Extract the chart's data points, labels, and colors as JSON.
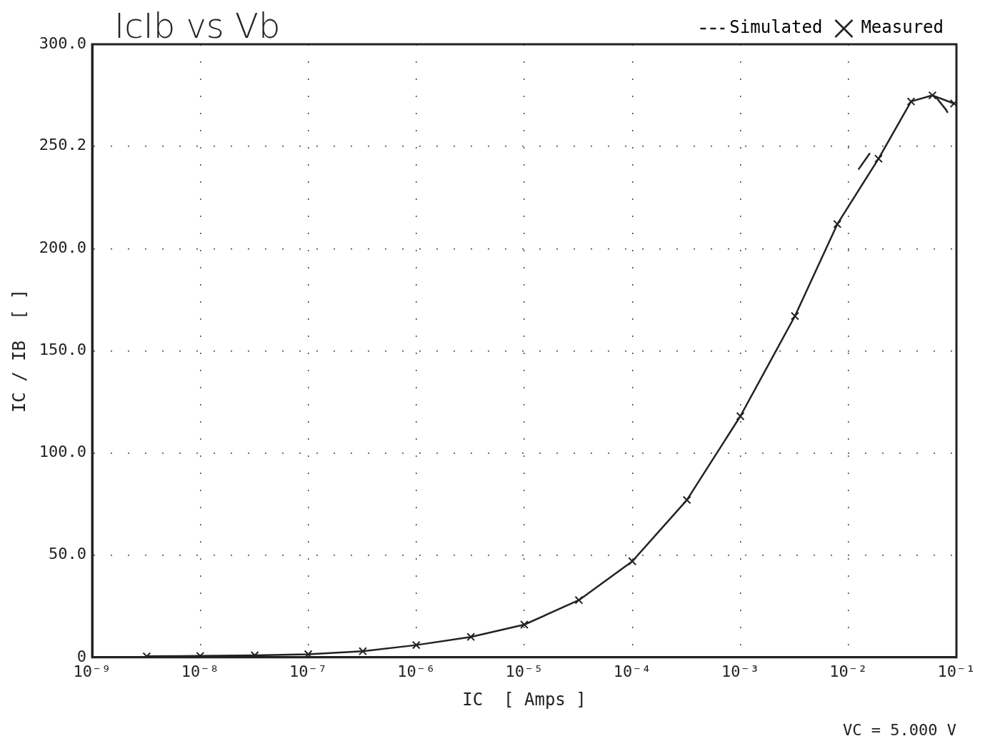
{
  "chart_data": {
    "type": "line",
    "title": "IcIb vs Vb",
    "xlabel": "IC  [ Amps ]",
    "ylabel": "IC / IB  [ ]",
    "annotations": [
      "VC =  5.000 V"
    ],
    "log": "x",
    "grid": true,
    "legend": "top right",
    "xlim": [
      1e-09,
      0.1
    ],
    "xticks": [
      {
        "value": 1e-09,
        "label": "10⁻⁹"
      },
      {
        "value": 1e-08,
        "label": "10⁻⁸"
      },
      {
        "value": 1e-07,
        "label": "10⁻⁷"
      },
      {
        "value": 1e-06,
        "label": "10⁻⁶"
      },
      {
        "value": 1e-05,
        "label": "10⁻⁵"
      },
      {
        "value": 0.0001,
        "label": "10⁻⁴"
      },
      {
        "value": 0.001,
        "label": "10⁻³"
      },
      {
        "value": 0.01,
        "label": "10⁻²"
      },
      {
        "value": 0.1,
        "label": "10⁻¹"
      }
    ],
    "ylim": [
      0,
      300
    ],
    "yticks": [
      0,
      {
        "value": 50,
        "label": "50.0"
      },
      {
        "value": 100,
        "label": "100.0"
      },
      {
        "value": 150,
        "label": "150.0"
      },
      {
        "value": 200,
        "label": "200.0"
      },
      {
        "value": 250.2,
        "label": "250.2"
      },
      {
        "value": 300,
        "label": "300.0"
      }
    ],
    "series": [
      {
        "name": "Simulated",
        "color": "#222222",
        "line_style": "dashed",
        "marker": "none",
        "x": [
          0.0125,
          0.0175,
          0.04,
          0.065,
          0.08,
          0.095
        ],
        "values": [
          239,
          250,
          null,
          274,
          268,
          261
        ]
      },
      {
        "name": "Measured",
        "color": "#222222",
        "line_style": "solid",
        "marker": "cross",
        "x": [
          3.2e-09,
          1e-08,
          3.2e-08,
          1e-07,
          3.2e-07,
          1e-06,
          3.2e-06,
          1e-05,
          3.2e-05,
          0.0001,
          0.00032,
          0.001,
          0.0032,
          0.0079,
          0.019,
          0.038,
          0.06,
          0.095
        ],
        "values": [
          0.5,
          0.7,
          1,
          1.5,
          3,
          6,
          10,
          16,
          28,
          47,
          77,
          118,
          167,
          212,
          244,
          272,
          275,
          271
        ]
      }
    ]
  }
}
